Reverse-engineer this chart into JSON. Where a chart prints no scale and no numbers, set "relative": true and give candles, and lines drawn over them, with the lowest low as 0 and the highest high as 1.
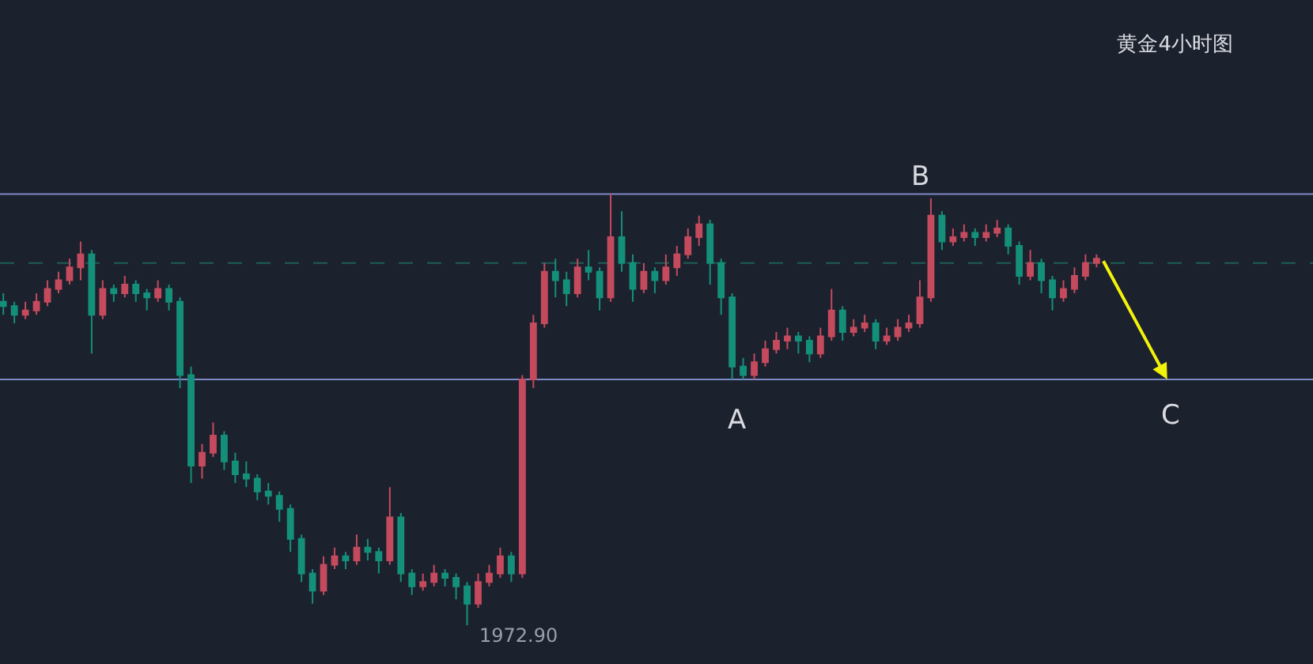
{
  "chart_data": {
    "type": "candlestick",
    "title": "黄金4小时图",
    "relative": true,
    "categories": [
      null,
      null,
      null,
      null,
      null,
      null,
      null,
      null,
      null,
      null,
      null,
      null,
      null,
      null,
      null,
      null,
      null,
      null,
      null,
      null,
      null,
      null,
      null,
      null,
      null,
      null,
      null,
      null,
      null,
      null,
      null,
      null,
      null,
      null,
      null,
      null,
      null,
      null,
      null,
      null,
      null,
      null,
      null,
      null,
      null,
      null,
      null,
      null,
      null,
      null,
      null,
      null,
      null,
      null,
      null,
      null,
      null,
      null,
      null,
      null,
      null,
      null,
      null,
      null,
      null,
      null,
      null,
      null,
      null,
      null,
      null,
      null,
      null,
      null,
      null,
      null,
      null,
      null,
      null,
      null,
      null,
      null,
      null,
      null,
      null,
      null,
      null,
      null,
      null,
      null,
      null,
      null,
      null,
      null,
      null,
      null,
      null,
      null,
      null,
      null
    ],
    "ohlc": [
      [
        0.75,
        0.77,
        0.72,
        0.74
      ],
      [
        0.74,
        0.75,
        0.7,
        0.72
      ],
      [
        0.72,
        0.75,
        0.71,
        0.73
      ],
      [
        0.73,
        0.77,
        0.72,
        0.75
      ],
      [
        0.75,
        0.8,
        0.74,
        0.78
      ],
      [
        0.78,
        0.82,
        0.77,
        0.8
      ],
      [
        0.8,
        0.85,
        0.79,
        0.83
      ],
      [
        0.83,
        0.89,
        0.8,
        0.86
      ],
      [
        0.86,
        0.87,
        0.63,
        0.72
      ],
      [
        0.72,
        0.8,
        0.71,
        0.78
      ],
      [
        0.78,
        0.79,
        0.75,
        0.77
      ],
      [
        0.77,
        0.81,
        0.76,
        0.79
      ],
      [
        0.79,
        0.8,
        0.75,
        0.77
      ],
      [
        0.77,
        0.78,
        0.73,
        0.76
      ],
      [
        0.76,
        0.8,
        0.75,
        0.78
      ],
      [
        0.78,
        0.79,
        0.73,
        0.75
      ],
      [
        0.75,
        0.76,
        0.55,
        0.58
      ],
      [
        0.58,
        0.6,
        0.33,
        0.37
      ],
      [
        0.37,
        0.42,
        0.34,
        0.4
      ],
      [
        0.4,
        0.47,
        0.39,
        0.44
      ],
      [
        0.44,
        0.45,
        0.36,
        0.38
      ],
      [
        0.38,
        0.4,
        0.33,
        0.35
      ],
      [
        0.35,
        0.38,
        0.32,
        0.34
      ],
      [
        0.34,
        0.35,
        0.29,
        0.31
      ],
      [
        0.31,
        0.33,
        0.28,
        0.3
      ],
      [
        0.3,
        0.31,
        0.24,
        0.27
      ],
      [
        0.27,
        0.28,
        0.17,
        0.2
      ],
      [
        0.2,
        0.21,
        0.1,
        0.12
      ],
      [
        0.12,
        0.13,
        0.05,
        0.08
      ],
      [
        0.08,
        0.16,
        0.07,
        0.14
      ],
      [
        0.14,
        0.18,
        0.13,
        0.16
      ],
      [
        0.16,
        0.17,
        0.13,
        0.15
      ],
      [
        0.15,
        0.21,
        0.14,
        0.18
      ],
      [
        0.18,
        0.2,
        0.15,
        0.17
      ],
      [
        0.17,
        0.18,
        0.12,
        0.15
      ],
      [
        0.15,
        0.32,
        0.14,
        0.25
      ],
      [
        0.25,
        0.26,
        0.1,
        0.12
      ],
      [
        0.12,
        0.13,
        0.07,
        0.09
      ],
      [
        0.09,
        0.12,
        0.08,
        0.1
      ],
      [
        0.1,
        0.14,
        0.09,
        0.12
      ],
      [
        0.12,
        0.13,
        0.09,
        0.11
      ],
      [
        0.11,
        0.12,
        0.06,
        0.09
      ],
      [
        0.09,
        0.1,
        0.0,
        0.05
      ],
      [
        0.05,
        0.12,
        0.04,
        0.1
      ],
      [
        0.1,
        0.14,
        0.09,
        0.12
      ],
      [
        0.12,
        0.18,
        0.11,
        0.16
      ],
      [
        0.16,
        0.17,
        0.1,
        0.12
      ],
      [
        0.12,
        0.58,
        0.11,
        0.57
      ],
      [
        0.57,
        0.72,
        0.55,
        0.7
      ],
      [
        0.7,
        0.84,
        0.69,
        0.82
      ],
      [
        0.82,
        0.85,
        0.76,
        0.8
      ],
      [
        0.8,
        0.82,
        0.74,
        0.77
      ],
      [
        0.77,
        0.85,
        0.76,
        0.83
      ],
      [
        0.83,
        0.87,
        0.8,
        0.82
      ],
      [
        0.82,
        0.83,
        0.73,
        0.76
      ],
      [
        0.76,
        1.0,
        0.75,
        0.9
      ],
      [
        0.9,
        0.96,
        0.82,
        0.84
      ],
      [
        0.84,
        0.86,
        0.75,
        0.78
      ],
      [
        0.78,
        0.84,
        0.77,
        0.82
      ],
      [
        0.82,
        0.83,
        0.77,
        0.8
      ],
      [
        0.8,
        0.86,
        0.79,
        0.83
      ],
      [
        0.83,
        0.88,
        0.81,
        0.86
      ],
      [
        0.86,
        0.92,
        0.85,
        0.9
      ],
      [
        0.9,
        0.95,
        0.88,
        0.93
      ],
      [
        0.93,
        0.94,
        0.79,
        0.84
      ],
      [
        0.84,
        0.85,
        0.72,
        0.76
      ],
      [
        0.76,
        0.77,
        0.57,
        0.6
      ],
      [
        0.6,
        0.62,
        0.57,
        0.58
      ],
      [
        0.58,
        0.63,
        0.57,
        0.61
      ],
      [
        0.61,
        0.66,
        0.6,
        0.64
      ],
      [
        0.64,
        0.68,
        0.63,
        0.66
      ],
      [
        0.66,
        0.69,
        0.64,
        0.67
      ],
      [
        0.67,
        0.68,
        0.63,
        0.66
      ],
      [
        0.66,
        0.67,
        0.61,
        0.63
      ],
      [
        0.63,
        0.69,
        0.62,
        0.67
      ],
      [
        0.67,
        0.78,
        0.66,
        0.73
      ],
      [
        0.73,
        0.74,
        0.66,
        0.68
      ],
      [
        0.68,
        0.71,
        0.67,
        0.69
      ],
      [
        0.69,
        0.72,
        0.68,
        0.7
      ],
      [
        0.7,
        0.71,
        0.64,
        0.66
      ],
      [
        0.66,
        0.69,
        0.65,
        0.67
      ],
      [
        0.67,
        0.71,
        0.66,
        0.69
      ],
      [
        0.69,
        0.72,
        0.68,
        0.7
      ],
      [
        0.7,
        0.8,
        0.69,
        0.76
      ],
      [
        0.76,
        0.99,
        0.75,
        0.95
      ],
      [
        0.95,
        0.96,
        0.87,
        0.89
      ],
      [
        0.89,
        0.92,
        0.88,
        0.9
      ],
      [
        0.9,
        0.93,
        0.89,
        0.91
      ],
      [
        0.91,
        0.92,
        0.88,
        0.9
      ],
      [
        0.9,
        0.93,
        0.89,
        0.91
      ],
      [
        0.91,
        0.94,
        0.9,
        0.92
      ],
      [
        0.92,
        0.93,
        0.86,
        0.88
      ],
      [
        0.88,
        0.89,
        0.79,
        0.81
      ],
      [
        0.81,
        0.87,
        0.8,
        0.84
      ],
      [
        0.84,
        0.85,
        0.77,
        0.8
      ],
      [
        0.8,
        0.81,
        0.73,
        0.76
      ],
      [
        0.76,
        0.8,
        0.75,
        0.78
      ],
      [
        0.78,
        0.83,
        0.77,
        0.81
      ],
      [
        0.81,
        0.86,
        0.8,
        0.84
      ],
      [
        0.84,
        0.86,
        0.83,
        0.85
      ]
    ],
    "colors": [
      "#14907a",
      "#14907a",
      "#c44a5d",
      "#c44a5d",
      "#c44a5d",
      "#c44a5d",
      "#c44a5d",
      "#c44a5d",
      "#14907a",
      "#c44a5d",
      "#14907a",
      "#c44a5d",
      "#14907a",
      "#14907a",
      "#c44a5d",
      "#14907a",
      "#14907a",
      "#14907a",
      "#c44a5d",
      "#c44a5d",
      "#14907a",
      "#14907a",
      "#14907a",
      "#14907a",
      "#14907a",
      "#14907a",
      "#14907a",
      "#14907a",
      "#14907a",
      "#c44a5d",
      "#c44a5d",
      "#14907a",
      "#c44a5d",
      "#14907a",
      "#14907a",
      "#c44a5d",
      "#14907a",
      "#14907a",
      "#c44a5d",
      "#c44a5d",
      "#14907a",
      "#14907a",
      "#14907a",
      "#c44a5d",
      "#c44a5d",
      "#c44a5d",
      "#14907a",
      "#c44a5d",
      "#c44a5d",
      "#c44a5d",
      "#14907a",
      "#14907a",
      "#c44a5d",
      "#14907a",
      "#14907a",
      "#c44a5d",
      "#14907a",
      "#14907a",
      "#c44a5d",
      "#14907a",
      "#c44a5d",
      "#c44a5d",
      "#c44a5d",
      "#c44a5d",
      "#14907a",
      "#14907a",
      "#14907a",
      "#14907a",
      "#c44a5d",
      "#c44a5d",
      "#c44a5d",
      "#c44a5d",
      "#14907a",
      "#14907a",
      "#c44a5d",
      "#c44a5d",
      "#14907a",
      "#c44a5d",
      "#c44a5d",
      "#14907a",
      "#c44a5d",
      "#c44a5d",
      "#c44a5d",
      "#c44a5d",
      "#c44a5d",
      "#14907a",
      "#c44a5d",
      "#c44a5d",
      "#14907a",
      "#c44a5d",
      "#c44a5d",
      "#14907a",
      "#14907a",
      "#c44a5d",
      "#14907a",
      "#14907a",
      "#c44a5d",
      "#c44a5d",
      "#c44a5d",
      "#c44a5d"
    ],
    "ref_lines": [
      {
        "axis": "y",
        "value": 1.0,
        "color": "#7d88c6"
      },
      {
        "axis": "y",
        "value": 0.57,
        "color": "#7d88c6"
      },
      {
        "axis": "y",
        "value": 0.84,
        "color": "#1e5f55",
        "line_style": "dashed"
      }
    ],
    "annotations": [
      "A",
      "B",
      "C",
      "1972.90"
    ]
  }
}
